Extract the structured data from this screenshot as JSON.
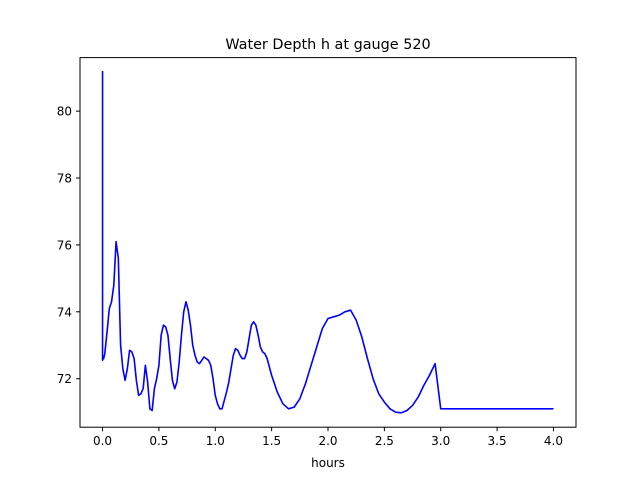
{
  "chart_data": {
    "type": "line",
    "title": "Water Depth h at gauge 520",
    "xlabel": "hours",
    "ylabel": "",
    "xlim": [
      -0.2,
      4.2
    ],
    "ylim": [
      70.55,
      81.6
    ],
    "xticks": [
      0.0,
      0.5,
      1.0,
      1.5,
      2.0,
      2.5,
      3.0,
      3.5,
      4.0
    ],
    "xtick_labels": [
      "0.0",
      "0.5",
      "1.0",
      "1.5",
      "2.0",
      "2.5",
      "3.0",
      "3.5",
      "4.0"
    ],
    "yticks": [
      72,
      74,
      76,
      78,
      80
    ],
    "ytick_labels": [
      "72",
      "74",
      "76",
      "78",
      "80"
    ],
    "grid": false,
    "series": [
      {
        "color": "#0000ff",
        "x": [
          0.0,
          0.0,
          0.005,
          0.01,
          0.02,
          0.04,
          0.06,
          0.08,
          0.1,
          0.12,
          0.14,
          0.16,
          0.18,
          0.2,
          0.22,
          0.24,
          0.26,
          0.28,
          0.3,
          0.32,
          0.34,
          0.36,
          0.38,
          0.4,
          0.42,
          0.44,
          0.46,
          0.48,
          0.5,
          0.52,
          0.54,
          0.56,
          0.58,
          0.6,
          0.62,
          0.64,
          0.66,
          0.68,
          0.7,
          0.72,
          0.74,
          0.76,
          0.78,
          0.8,
          0.82,
          0.84,
          0.86,
          0.88,
          0.9,
          0.92,
          0.94,
          0.96,
          0.98,
          1.0,
          1.02,
          1.04,
          1.06,
          1.08,
          1.1,
          1.12,
          1.14,
          1.16,
          1.18,
          1.2,
          1.22,
          1.24,
          1.26,
          1.28,
          1.3,
          1.32,
          1.34,
          1.36,
          1.38,
          1.4,
          1.42,
          1.44,
          1.46,
          1.5,
          1.55,
          1.6,
          1.65,
          1.7,
          1.75,
          1.8,
          1.85,
          1.9,
          1.95,
          2.0,
          2.05,
          2.1,
          2.15,
          2.2,
          2.25,
          2.3,
          2.35,
          2.4,
          2.45,
          2.5,
          2.55,
          2.6,
          2.65,
          2.7,
          2.75,
          2.8,
          2.85,
          2.9,
          2.95,
          3.0,
          3.05,
          3.1,
          3.15,
          3.2,
          3.25,
          3.3,
          3.35,
          3.4,
          3.45,
          3.5,
          3.55,
          3.6,
          3.65,
          3.7,
          3.75,
          3.8,
          3.85,
          3.9,
          3.95,
          4.0
        ],
        "y": [
          81.2,
          72.55,
          72.6,
          72.6,
          72.75,
          73.4,
          74.1,
          74.3,
          74.8,
          76.1,
          75.6,
          73.0,
          72.3,
          71.95,
          72.3,
          72.85,
          72.8,
          72.6,
          71.95,
          71.5,
          71.55,
          71.7,
          72.4,
          71.9,
          71.1,
          71.05,
          71.7,
          72.0,
          72.4,
          73.3,
          73.6,
          73.55,
          73.3,
          72.6,
          71.95,
          71.7,
          71.9,
          72.5,
          73.3,
          74.0,
          74.3,
          74.05,
          73.6,
          73.0,
          72.7,
          72.5,
          72.45,
          72.55,
          72.65,
          72.6,
          72.55,
          72.4,
          72.0,
          71.5,
          71.25,
          71.1,
          71.1,
          71.35,
          71.6,
          71.9,
          72.3,
          72.7,
          72.9,
          72.85,
          72.7,
          72.6,
          72.6,
          72.8,
          73.2,
          73.6,
          73.7,
          73.6,
          73.3,
          72.95,
          72.8,
          72.75,
          72.6,
          72.1,
          71.6,
          71.25,
          71.1,
          71.15,
          71.4,
          71.85,
          72.4,
          72.95,
          73.5,
          73.8,
          73.85,
          73.9,
          74.0,
          74.05,
          73.75,
          73.25,
          72.6,
          72.0,
          71.55,
          71.3,
          71.1,
          71.0,
          70.98,
          71.05,
          71.2,
          71.45,
          71.8,
          72.1,
          72.45,
          71.1,
          71.1,
          71.1,
          71.1,
          71.1,
          71.1,
          71.1,
          71.1,
          71.1,
          71.1,
          71.1,
          71.1,
          71.1,
          71.1,
          71.1,
          71.1,
          71.1,
          71.1,
          71.1,
          71.1,
          71.1
        ]
      }
    ]
  }
}
